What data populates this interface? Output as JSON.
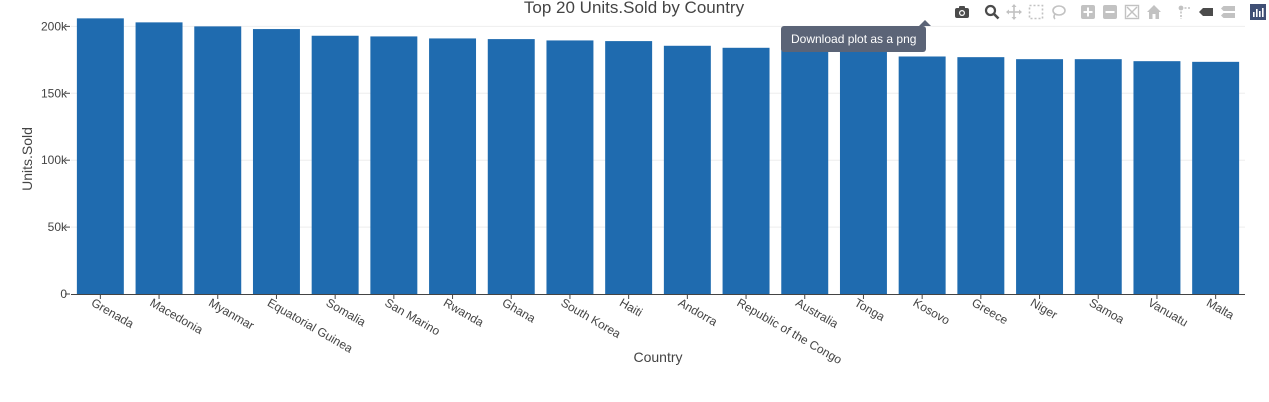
{
  "chart_data": {
    "type": "bar",
    "title": "Top 20 Units.Sold by Country",
    "xlabel": "Country",
    "ylabel": "Units.Sold",
    "ylim": [
      0,
      210000
    ],
    "y_ticks": [
      0,
      50000,
      100000,
      150000,
      200000
    ],
    "y_tick_labels": [
      "0",
      "50k",
      "100k",
      "150k",
      "200k"
    ],
    "grid": true,
    "bar_color": "#1f6baf",
    "categories": [
      "Grenada",
      "Macedonia",
      "Myanmar",
      "Equatorial Guinea",
      "Somalia",
      "San Marino",
      "Rwanda",
      "Ghana",
      "South Korea",
      "Haiti",
      "Andorra",
      "Republic of the Congo",
      "Australia",
      "Tonga",
      "Kosovo",
      "Greece",
      "Niger",
      "Samoa",
      "Vanuatu",
      "Malta"
    ],
    "values": [
      206000,
      203000,
      200000,
      198000,
      193000,
      192500,
      191000,
      190500,
      189500,
      189000,
      185500,
      184000,
      184000,
      184000,
      177500,
      177000,
      175500,
      175500,
      174000,
      173500
    ]
  },
  "modebar": {
    "tooltip": "Download plot as a png",
    "icons": [
      "camera-icon",
      "zoom-icon",
      "pan-icon",
      "box-select-icon",
      "lasso-select-icon",
      "zoom-in-icon",
      "zoom-out-icon",
      "autoscale-icon",
      "reset-axes-icon",
      "spike-lines-icon",
      "hover-closest-icon",
      "hover-compare-icon",
      "plotly-logo-icon"
    ],
    "icon_color": "#c2c2c2",
    "active_icon_color": "#4b4b4b",
    "logo_color": "#3f4f75"
  }
}
